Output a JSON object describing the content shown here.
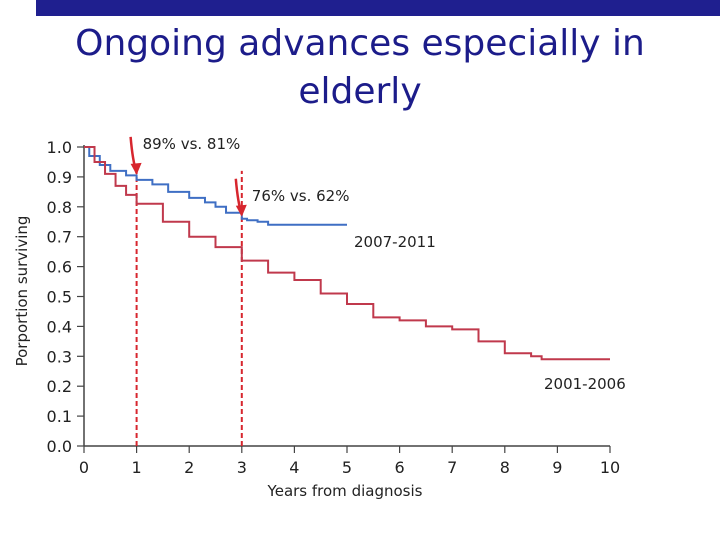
{
  "slide": {
    "title_line1": "Ongoing advances especially in",
    "title_line2": "elderly",
    "title_color": "#1c1c8a",
    "bar_color": "#1f1f8f"
  },
  "chart_data": {
    "type": "line",
    "title": "",
    "xlabel": "Years from diagnosis",
    "ylabel": "Porportion surviving",
    "xlim": [
      0,
      10
    ],
    "ylim": [
      0,
      1.0
    ],
    "x_ticks": [
      "0",
      "1",
      "2",
      "3",
      "4",
      "5",
      "6",
      "7",
      "8",
      "9",
      "10"
    ],
    "y_ticks": [
      "0.0",
      "0.1",
      "0.2",
      "0.3",
      "0.4",
      "0.5",
      "0.6",
      "0.7",
      "0.8",
      "0.9",
      "1.0"
    ],
    "grid": false,
    "series": [
      {
        "name": "2007-2011",
        "color": "#3f6fc4",
        "x": [
          0,
          0.1,
          0.3,
          0.5,
          0.8,
          1.0,
          1.3,
          1.6,
          2.0,
          2.3,
          2.5,
          2.7,
          3.0,
          3.1,
          3.3,
          3.5,
          4.0,
          4.5,
          5.0
        ],
        "y": [
          1.0,
          0.97,
          0.94,
          0.92,
          0.905,
          0.89,
          0.875,
          0.85,
          0.83,
          0.815,
          0.8,
          0.78,
          0.76,
          0.755,
          0.75,
          0.74,
          0.74,
          0.74,
          0.74
        ]
      },
      {
        "name": "2001-2006",
        "color": "#c0394c",
        "x": [
          0,
          0.2,
          0.4,
          0.6,
          0.8,
          1.0,
          1.5,
          2.0,
          2.5,
          3.0,
          3.5,
          4.0,
          4.5,
          5.0,
          5.5,
          6.0,
          6.5,
          7.0,
          7.5,
          8.0,
          8.5,
          8.7,
          9.0,
          10.0
        ],
        "y": [
          1.0,
          0.95,
          0.91,
          0.87,
          0.84,
          0.81,
          0.75,
          0.7,
          0.665,
          0.62,
          0.58,
          0.555,
          0.51,
          0.475,
          0.43,
          0.42,
          0.4,
          0.39,
          0.35,
          0.31,
          0.3,
          0.29,
          0.29,
          0.29
        ]
      }
    ],
    "annotations": [
      {
        "x": 1,
        "text": "89% vs. 81%"
      },
      {
        "x": 3,
        "text": "76% vs. 62%"
      }
    ],
    "series_labels": [
      {
        "text": "2007-2011"
      },
      {
        "text": "2001-2006"
      }
    ],
    "marker_color": "#d7262e"
  }
}
